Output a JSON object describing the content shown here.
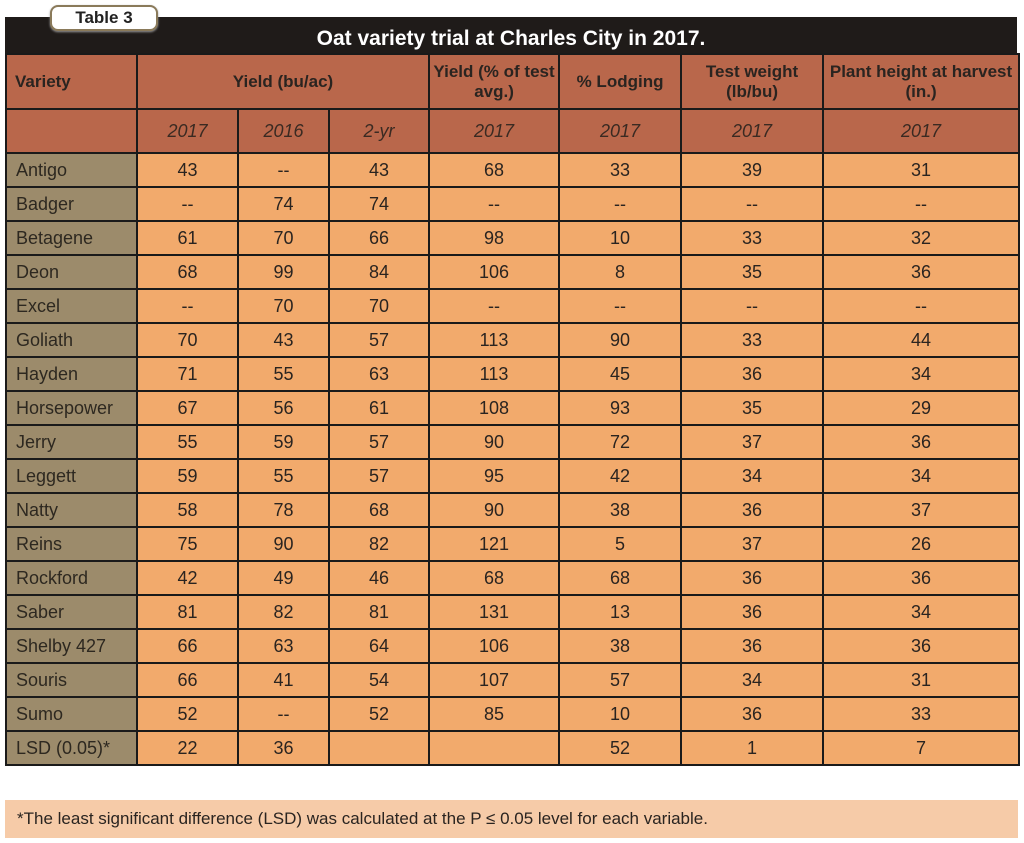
{
  "table_label": "Table 3",
  "title": "Oat variety trial at Charles City in 2017.",
  "headers": {
    "variety": "Variety",
    "yield": "Yield (bu/ac)",
    "yield_pct": "Yield (% of test avg.)",
    "lodging": "% Lodging",
    "test_weight": "Test weight (lb/bu)",
    "plant_height": "Plant height at harvest (in.)"
  },
  "subheaders": [
    "2017",
    "2016",
    "2-yr",
    "2017",
    "2017",
    "2017",
    "2017"
  ],
  "rows": [
    {
      "variety": "Antigo",
      "values": [
        "43",
        "--",
        "43",
        "68",
        "33",
        "39",
        "31"
      ]
    },
    {
      "variety": "Badger",
      "values": [
        "--",
        "74",
        "74",
        "--",
        "--",
        "--",
        "--"
      ]
    },
    {
      "variety": "Betagene",
      "values": [
        "61",
        "70",
        "66",
        "98",
        "10",
        "33",
        "32"
      ]
    },
    {
      "variety": "Deon",
      "values": [
        "68",
        "99",
        "84",
        "106",
        "8",
        "35",
        "36"
      ]
    },
    {
      "variety": "Excel",
      "values": [
        "--",
        "70",
        "70",
        "--",
        "--",
        "--",
        "--"
      ]
    },
    {
      "variety": "Goliath",
      "values": [
        "70",
        "43",
        "57",
        "113",
        "90",
        "33",
        "44"
      ]
    },
    {
      "variety": "Hayden",
      "values": [
        "71",
        "55",
        "63",
        "113",
        "45",
        "36",
        "34"
      ]
    },
    {
      "variety": "Horsepower",
      "values": [
        "67",
        "56",
        "61",
        "108",
        "93",
        "35",
        "29"
      ]
    },
    {
      "variety": "Jerry",
      "values": [
        "55",
        "59",
        "57",
        "90",
        "72",
        "37",
        "36"
      ]
    },
    {
      "variety": "Leggett",
      "values": [
        "59",
        "55",
        "57",
        "95",
        "42",
        "34",
        "34"
      ]
    },
    {
      "variety": "Natty",
      "values": [
        "58",
        "78",
        "68",
        "90",
        "38",
        "36",
        "37"
      ]
    },
    {
      "variety": "Reins",
      "values": [
        "75",
        "90",
        "82",
        "121",
        "5",
        "37",
        "26"
      ]
    },
    {
      "variety": "Rockford",
      "values": [
        "42",
        "49",
        "46",
        "68",
        "68",
        "36",
        "36"
      ]
    },
    {
      "variety": "Saber",
      "values": [
        "81",
        "82",
        "81",
        "131",
        "13",
        "36",
        "34"
      ]
    },
    {
      "variety": "Shelby 427",
      "values": [
        "66",
        "63",
        "64",
        "106",
        "38",
        "36",
        "36"
      ]
    },
    {
      "variety": "Souris",
      "values": [
        "66",
        "41",
        "54",
        "107",
        "57",
        "34",
        "31"
      ]
    },
    {
      "variety": "Sumo",
      "values": [
        "52",
        "--",
        "52",
        "85",
        "10",
        "36",
        "33"
      ]
    },
    {
      "variety": "LSD (0.05)*",
      "values": [
        "22",
        "36",
        "",
        "",
        "52",
        "1",
        "7"
      ]
    }
  ],
  "footnote": "*The least significant difference (LSD) was calculated at the P ≤ 0.05 level for each variable."
}
